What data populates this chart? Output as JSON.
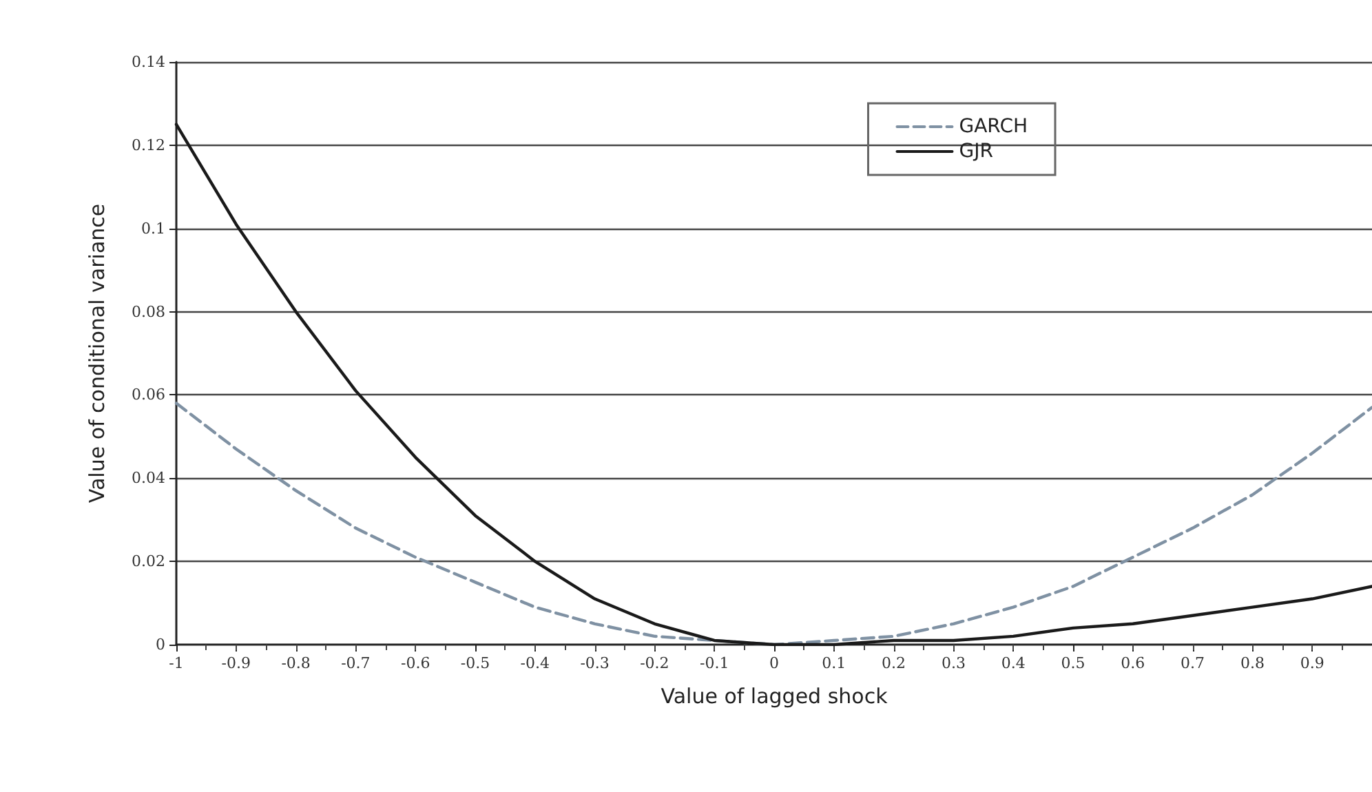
{
  "chart_data": {
    "type": "line",
    "xlabel": "Value of lagged shock",
    "ylabel": "Value of conditional variance",
    "x": [
      -1,
      -0.9,
      -0.8,
      -0.7,
      -0.6,
      -0.5,
      -0.4,
      -0.3,
      -0.2,
      -0.1,
      0,
      0.1,
      0.2,
      0.3,
      0.4,
      0.5,
      0.6,
      0.7,
      0.8,
      0.9,
      1
    ],
    "series": [
      {
        "name": "GARCH",
        "color": "#7f91a3",
        "line_style": "dashed",
        "values": [
          0.058,
          0.047,
          0.037,
          0.028,
          0.021,
          0.015,
          0.009,
          0.005,
          0.002,
          0.001,
          0,
          0.001,
          0.002,
          0.005,
          0.009,
          0.014,
          0.021,
          0.028,
          0.036,
          0.046,
          0.057
        ]
      },
      {
        "name": "GJR",
        "color": "#1a1a1a",
        "line_style": "solid",
        "values": [
          0.125,
          0.101,
          0.08,
          0.061,
          0.045,
          0.031,
          0.02,
          0.011,
          0.005,
          0.001,
          0,
          0,
          0.001,
          0.001,
          0.002,
          0.004,
          0.005,
          0.007,
          0.009,
          0.011,
          0.014
        ]
      }
    ],
    "xlim": [
      -1,
      1
    ],
    "xticks": [
      -1,
      -0.9,
      -0.8,
      -0.7,
      -0.6,
      -0.5,
      -0.4,
      -0.3,
      -0.2,
      -0.1,
      0,
      0.1,
      0.2,
      0.3,
      0.4,
      0.5,
      0.6,
      0.7,
      0.8,
      0.9,
      {
        "value": 1,
        "label": null
      }
    ],
    "ylim": [
      0,
      0.14
    ],
    "yticks": [
      0,
      0.02,
      0.04,
      0.06,
      0.08,
      0.1,
      0.12,
      0.14
    ],
    "grid": "y",
    "legend": "top right",
    "marker": "none"
  }
}
